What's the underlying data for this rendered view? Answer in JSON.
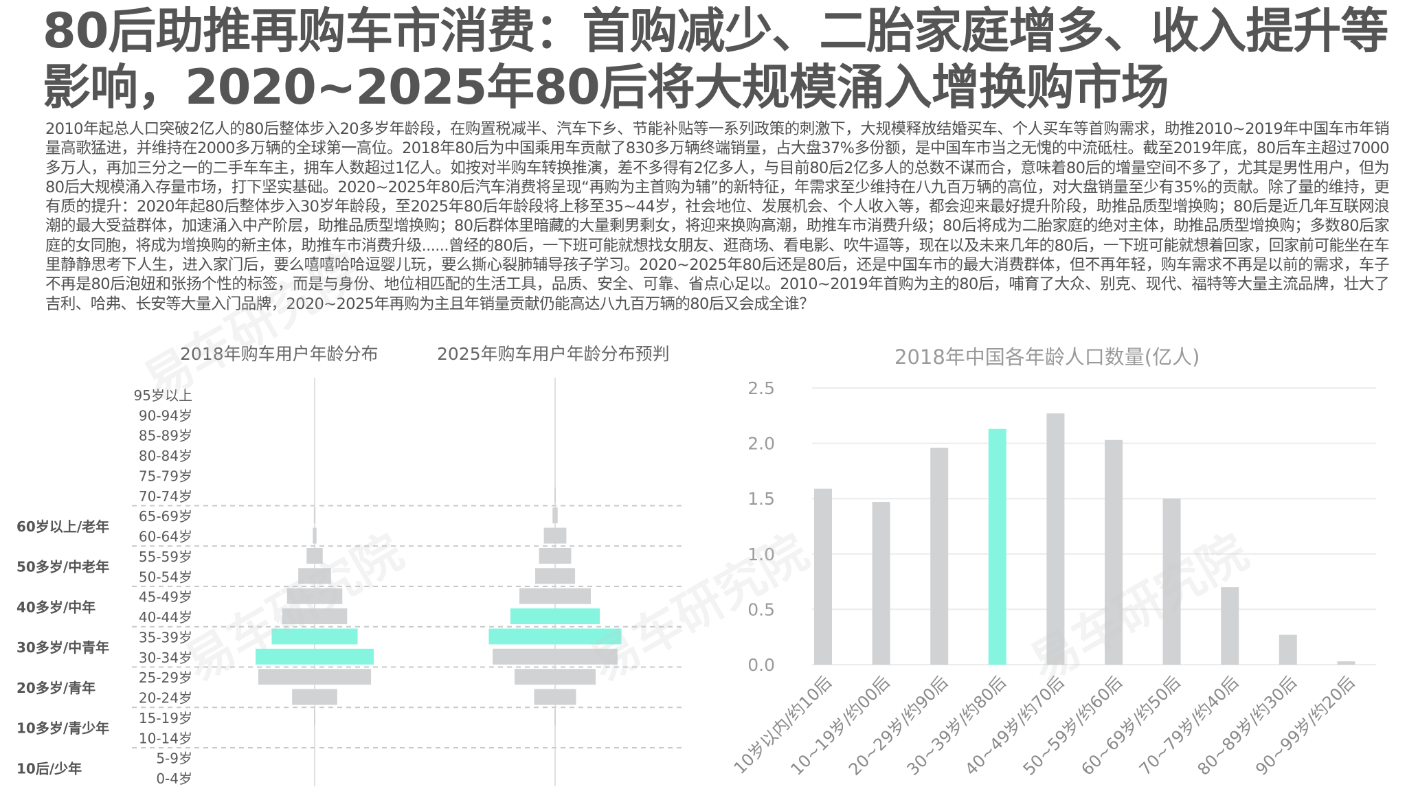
{
  "title": "80后助推再购车市消费：首购减少、二胎家庭增多、收入提升等影响，2020~2025年80后将大规模涌入增换购市场",
  "body": "2010年起总人口突破2亿人的80后整体步入20多岁年龄段，在购置税减半、汽车下乡、节能补贴等一系列政策的刺激下，大规模释放结婚买车、个人买车等首购需求，助推2010~2019年中国车市年销量高歌猛进，并维持在2000多万辆的全球第一高位。2018年80后为中国乘用车贡献了830多万辆终端销量，占大盘37%多份额，是中国车市当之无愧的中流砥柱。截至2019年底，80后车主超过7000多万人，再加三分之一的二手车车主，拥车人数超过1亿人。如按对半购车转换推演，差不多得有2亿多人，与目前80后2亿多人的总数不谋而合，意味着80后的增量空间不多了，尤其是男性用户，但为80后大规模涌入存量市场，打下坚实基础。2020~2025年80后汽车消费将呈现“再购为主首购为辅”的新特征，年需求至少维持在八九百万辆的高位，对大盘销量至少有35%的贡献。除了量的维持，更有质的提升：2020年起80后整体步入30岁年龄段，至2025年80后年龄段将上移至35~44岁，社会地位、发展机会、个人收入等，都会迎来最好提升阶段，助推品质型增换购；80后是近几年互联网浪潮的最大受益群体，加速涌入中产阶层，助推品质型增换购；80后群体里暗藏的大量剩男剩女，将迎来换购高潮，助推车市消费升级；80后将成为二胎家庭的绝对主体，助推品质型增换购；多数80后家庭的女同胞，将成为增换购的新主体，助推车市消费升级......曾经的80后，一下班可能就想找女朋友、逛商场、看电影、吹牛逼等，现在以及未来几年的80后，一下班可能就想着回家，回家前可能坐在车里静静思考下人生，进入家门后，要么嘻嘻哈哈逗婴儿玩，要么撕心裂肺辅导孩子学习。2020~2025年80后还是80后，还是中国车市的最大消费群体，但不再年轻，购车需求不再是以前的需求，车子不再是80后泡妞和张扬个性的标签，而是与身份、地位相匹配的生活工具，品质、安全、可靠、省点心足以。2010~2019年首购为主的80后，哺育了大众、别克、现代、福特等大量主流品牌，壮大了吉利、哈弗、长安等大量入门品牌，2020~2025年再购为主且年销量贡献仍能高达八九百万辆的80后又会成全谁？",
  "watermark": "易车研究院",
  "colors": {
    "bar": "#d0d2d4",
    "highlight": "#86f5e0",
    "grid": "#ececec",
    "text": "#595959"
  },
  "chart_data": [
    {
      "type": "bar",
      "orientation": "horizontal-centered",
      "title": "2018年购车用户年龄分布",
      "categories": [
        "95岁以上",
        "90-94岁",
        "85-89岁",
        "80-84岁",
        "75-79岁",
        "70-74岁",
        "65-69岁",
        "60-64岁",
        "55-59岁",
        "50-54岁",
        "45-49岁",
        "40-44岁",
        "35-39岁",
        "30-34岁",
        "25-29岁",
        "20-24岁",
        "15-19岁",
        "10-14岁",
        "5-9岁",
        "0-4岁"
      ],
      "values": [
        0,
        0,
        0,
        0,
        0,
        0,
        0.3,
        0.7,
        3.0,
        6.1,
        10.3,
        12.1,
        16.0,
        22.0,
        21.0,
        8.4,
        0.2,
        0,
        0,
        0
      ],
      "highlight": [
        "35-39岁",
        "30-34岁"
      ],
      "groups": [
        {
          "label": "60岁以上/老年"
        },
        {
          "label": "50多岁/中老年"
        },
        {
          "label": "40多岁/中年"
        },
        {
          "label": "30多岁/中青年"
        },
        {
          "label": "20多岁/青年"
        },
        {
          "label": "10多岁/青少年"
        },
        {
          "label": "10后/少年"
        }
      ]
    },
    {
      "type": "bar",
      "orientation": "horizontal-centered",
      "title": "2025年购车用户年龄分布预判",
      "categories": [
        "95岁以上",
        "90-94岁",
        "85-89岁",
        "80-84岁",
        "75-79岁",
        "70-74岁",
        "65-69岁",
        "60-64岁",
        "55-59岁",
        "50-54岁",
        "45-49岁",
        "40-44岁",
        "35-39岁",
        "30-34岁",
        "25-29岁",
        "20-24岁",
        "15-19岁",
        "10-14岁",
        "5-9岁",
        "0-4岁"
      ],
      "values": [
        0,
        0,
        0,
        0,
        0,
        0.2,
        0.8,
        3.5,
        5.0,
        6.2,
        11.1,
        13.9,
        20.6,
        19.4,
        12.6,
        6.5,
        0.2,
        0,
        0,
        0
      ],
      "highlight": [
        "40-44岁",
        "35-39岁"
      ]
    },
    {
      "type": "bar",
      "title": "2018年中国各年龄人口数量(亿人)",
      "categories": [
        "10岁以内/约10后",
        "10~19岁/约00后",
        "20~29岁/约90后",
        "30~39岁/约80后",
        "40~49岁/约70后",
        "50~59岁/约60后",
        "60~69岁/约50后",
        "70~79岁/约40后",
        "80~89岁/约30后",
        "90~99岁/约20后"
      ],
      "values": [
        1.59,
        1.47,
        1.96,
        2.13,
        2.27,
        2.03,
        1.5,
        0.7,
        0.27,
        0.03
      ],
      "highlight": [
        "30~39岁/约80后"
      ],
      "ylim": [
        0,
        2.5
      ],
      "yticks": [
        "0.0",
        "0.5",
        "1.0",
        "1.5",
        "2.0",
        "2.5"
      ],
      "grid": true
    }
  ]
}
